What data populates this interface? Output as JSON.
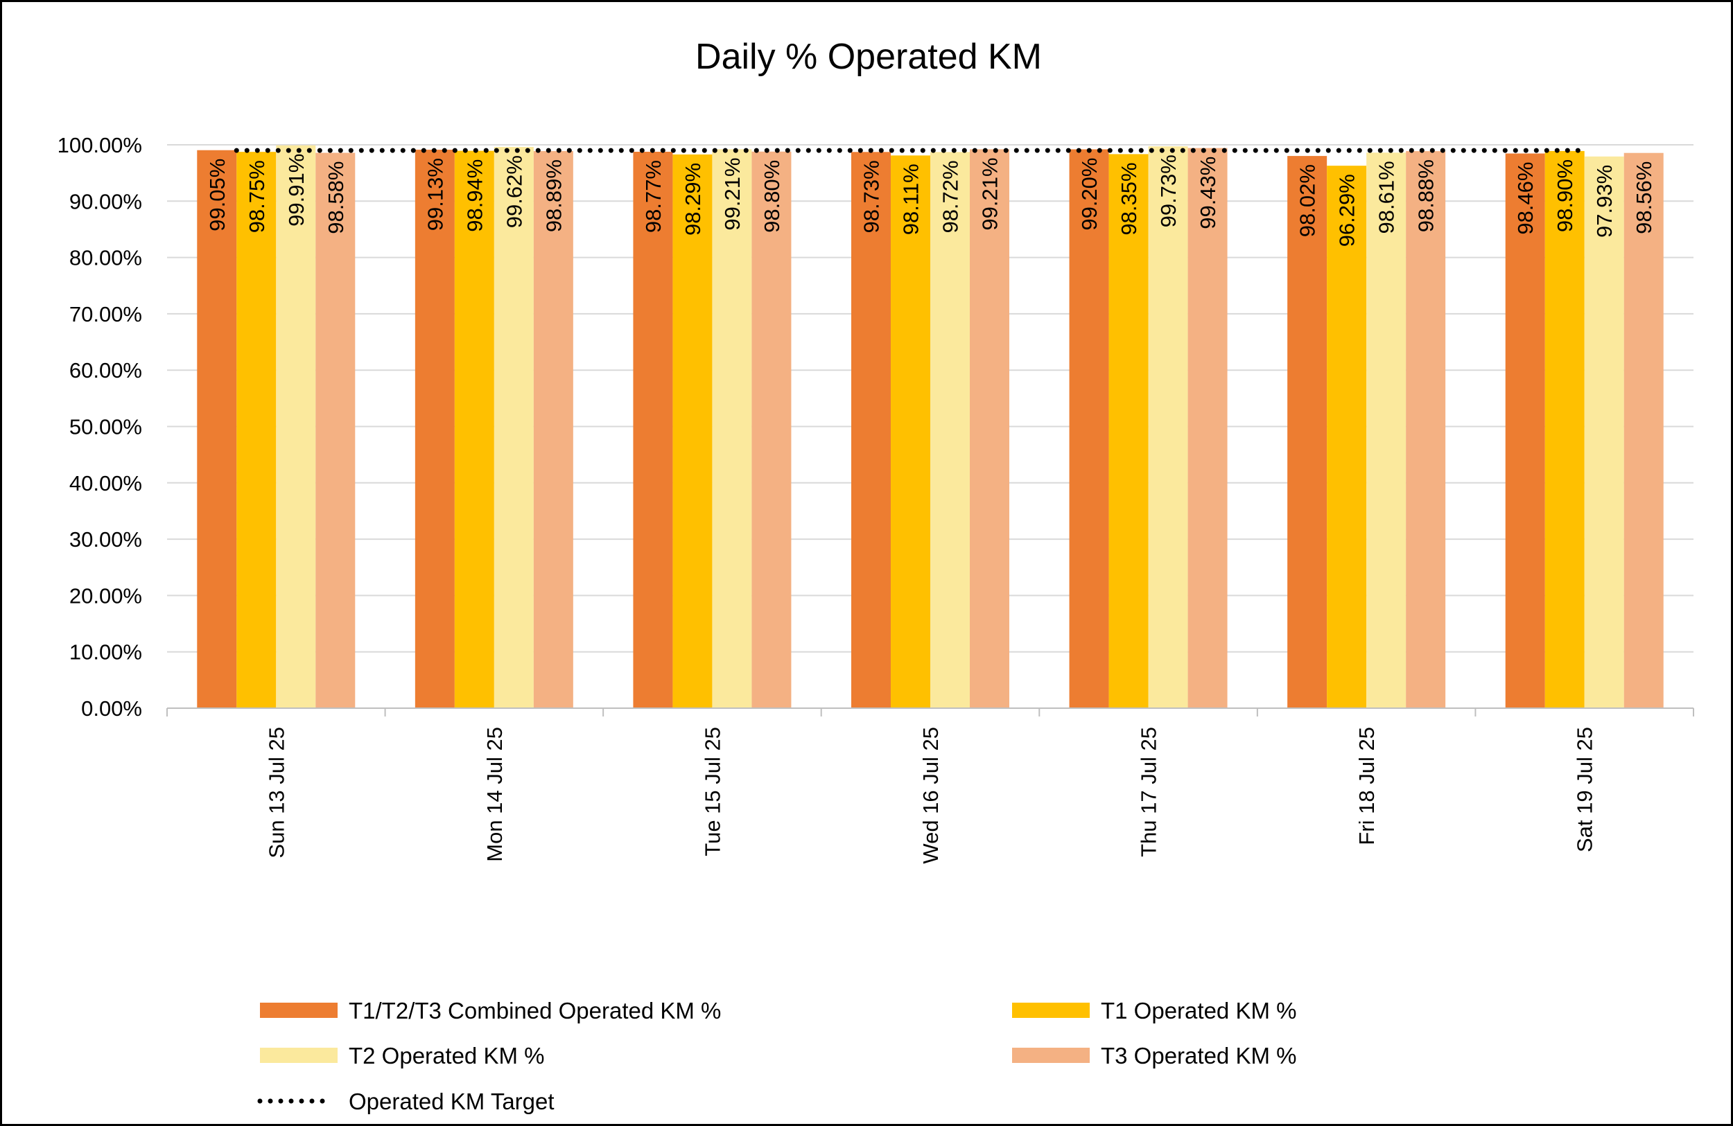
{
  "chart_data": {
    "type": "bar",
    "title": "Daily % Operated KM",
    "xlabel": "",
    "ylabel": "",
    "ylim": [
      0,
      100
    ],
    "yticks": [
      "0.00%",
      "10.00%",
      "20.00%",
      "30.00%",
      "40.00%",
      "50.00%",
      "60.00%",
      "70.00%",
      "80.00%",
      "90.00%",
      "100.00%"
    ],
    "categories": [
      "Sun 13 Jul 25",
      "Mon 14 Jul 25",
      "Tue 15 Jul 25",
      "Wed 16 Jul 25",
      "Thu 17 Jul 25",
      "Fri 18 Jul 25",
      "Sat 19 Jul 25"
    ],
    "series": [
      {
        "name": "T1/T2/T3 Combined Operated KM %",
        "color": "#ED7D31",
        "values": [
          99.05,
          99.13,
          98.77,
          98.73,
          99.2,
          98.02,
          98.46
        ],
        "labels": [
          "99.05%",
          "99.13%",
          "98.77%",
          "98.73%",
          "99.20%",
          "98.02%",
          "98.46%"
        ]
      },
      {
        "name": "T1 Operated KM %",
        "color": "#FFC000",
        "values": [
          98.75,
          98.94,
          98.29,
          98.11,
          98.35,
          96.29,
          98.9
        ],
        "labels": [
          "98.75%",
          "98.94%",
          "98.29%",
          "98.11%",
          "98.35%",
          "96.29%",
          "98.90%"
        ]
      },
      {
        "name": "T2 Operated KM %",
        "color": "#FBE99D",
        "values": [
          99.91,
          99.62,
          99.21,
          98.72,
          99.73,
          98.61,
          97.93
        ],
        "labels": [
          "99.91%",
          "99.62%",
          "99.21%",
          "98.72%",
          "99.73%",
          "98.61%",
          "97.93%"
        ]
      },
      {
        "name": "T3 Operated KM %",
        "color": "#F4B183",
        "values": [
          98.58,
          98.89,
          98.8,
          99.21,
          99.43,
          98.88,
          98.56
        ],
        "labels": [
          "98.58%",
          "98.89%",
          "98.80%",
          "99.21%",
          "99.43%",
          "98.88%",
          "98.56%"
        ]
      }
    ],
    "target": {
      "name": "Operated KM Target",
      "value": 99.0,
      "style": "dotted",
      "color": "#000000"
    },
    "grid": true,
    "legend_position": "bottom"
  }
}
